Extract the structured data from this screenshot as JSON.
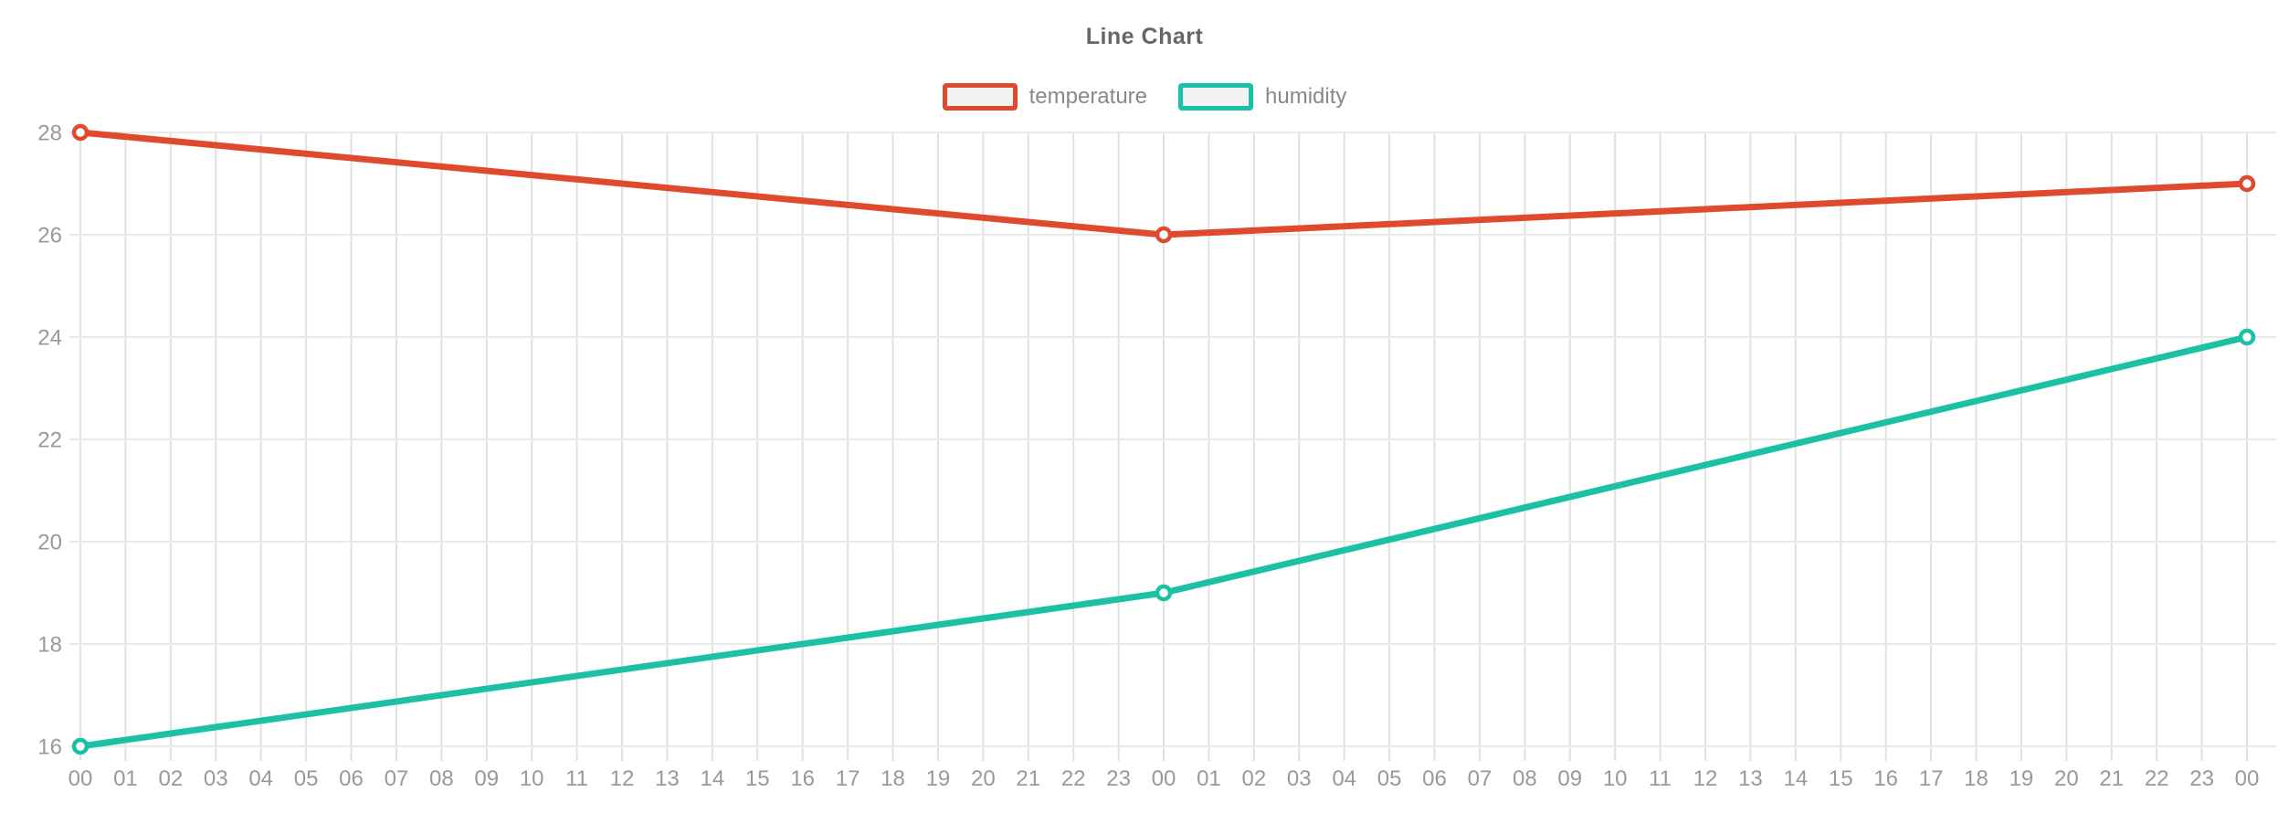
{
  "chart_data": {
    "type": "line",
    "title": "Line Chart",
    "legend_position": "top-center",
    "grid": true,
    "x_categories": [
      "00",
      "01",
      "02",
      "03",
      "04",
      "05",
      "06",
      "07",
      "08",
      "09",
      "10",
      "11",
      "12",
      "13",
      "14",
      "15",
      "16",
      "17",
      "18",
      "19",
      "20",
      "21",
      "22",
      "23",
      "00",
      "01",
      "02",
      "03",
      "04",
      "05",
      "06",
      "07",
      "08",
      "09",
      "10",
      "11",
      "12",
      "13",
      "14",
      "15",
      "16",
      "17",
      "18",
      "19",
      "20",
      "21",
      "22",
      "23",
      "00"
    ],
    "y_axis": {
      "min": 16,
      "max": 28,
      "tick_step": 2,
      "tick_labels": [
        "28",
        "26",
        "24",
        "22",
        "20",
        "18",
        "16"
      ]
    },
    "series": [
      {
        "name": "temperature",
        "color": "#df4a2e",
        "points": [
          {
            "x_index": 0,
            "value": 28
          },
          {
            "x_index": 24,
            "value": 26
          },
          {
            "x_index": 48,
            "value": 27
          }
        ]
      },
      {
        "name": "humidity",
        "color": "#1bc0a5",
        "points": [
          {
            "x_index": 0,
            "value": 16
          },
          {
            "x_index": 24,
            "value": 19
          },
          {
            "x_index": 48,
            "value": 24
          }
        ]
      }
    ],
    "colors": {
      "background": "#ffffff",
      "grid_vertical": "#e1e1e1",
      "grid_horizontal": "#e9e9e9",
      "axis_label": "#999999",
      "title": "#666666",
      "legend_label": "#888888",
      "legend_swatch_fill": "#f2f2f2",
      "marker_fill": "#ffffff"
    }
  }
}
